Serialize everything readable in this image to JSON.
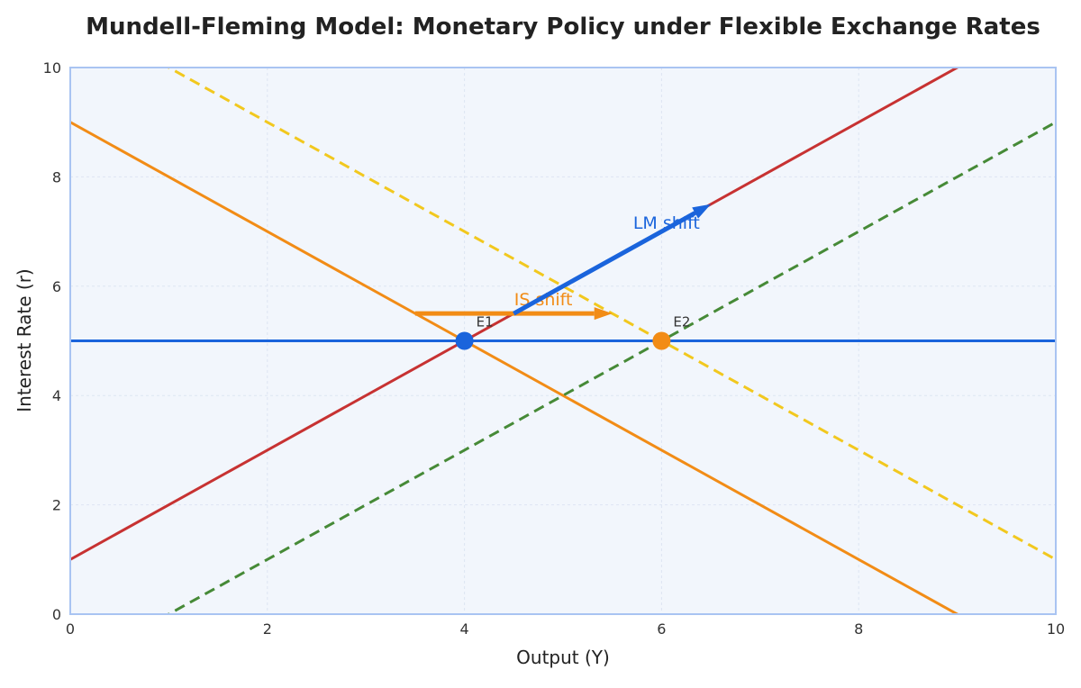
{
  "chart_data": {
    "type": "line",
    "title": "Mundell-Fleming Model: Monetary Policy under Flexible Exchange Rates",
    "xlabel": "Output (Y)",
    "ylabel": "Interest Rate (r)",
    "xlim": [
      0,
      10
    ],
    "ylim": [
      0,
      10
    ],
    "xticks": [
      0,
      2,
      4,
      6,
      8,
      10
    ],
    "yticks": [
      0,
      2,
      4,
      6,
      8,
      10
    ],
    "grid": true,
    "legend": "none",
    "series": [
      {
        "x": [
          0,
          10
        ],
        "y": [
          9,
          -1
        ],
        "color": "#f28c16",
        "dashed": false
      },
      {
        "x": [
          0,
          10
        ],
        "y": [
          11,
          1
        ],
        "color": "#f2c81e",
        "dashed": true
      },
      {
        "x": [
          0,
          10
        ],
        "y": [
          1,
          11
        ],
        "color": "#c73232",
        "dashed": false
      },
      {
        "x": [
          0,
          10
        ],
        "y": [
          -1,
          9
        ],
        "color": "#468a37",
        "dashed": true
      },
      {
        "x": [
          0,
          10
        ],
        "y": [
          5,
          5
        ],
        "color": "#1a64dc",
        "dashed": false
      }
    ],
    "points": [
      {
        "label": "E1",
        "x": 4,
        "y": 5,
        "color": "#1a64dc"
      },
      {
        "label": "E2",
        "x": 6,
        "y": 5,
        "color": "#f28c16"
      }
    ],
    "arrows": [
      {
        "label": "IS shift",
        "from": [
          3.5,
          5.5
        ],
        "to": [
          5.5,
          5.5
        ],
        "color": "#f28c16",
        "label_at": [
          4.8,
          5.65
        ]
      },
      {
        "label": "LM shift",
        "from": [
          4.5,
          5.5
        ],
        "to": [
          6.5,
          7.5
        ],
        "color": "#1a64dc",
        "label_at": [
          6.05,
          7.05
        ]
      }
    ]
  }
}
